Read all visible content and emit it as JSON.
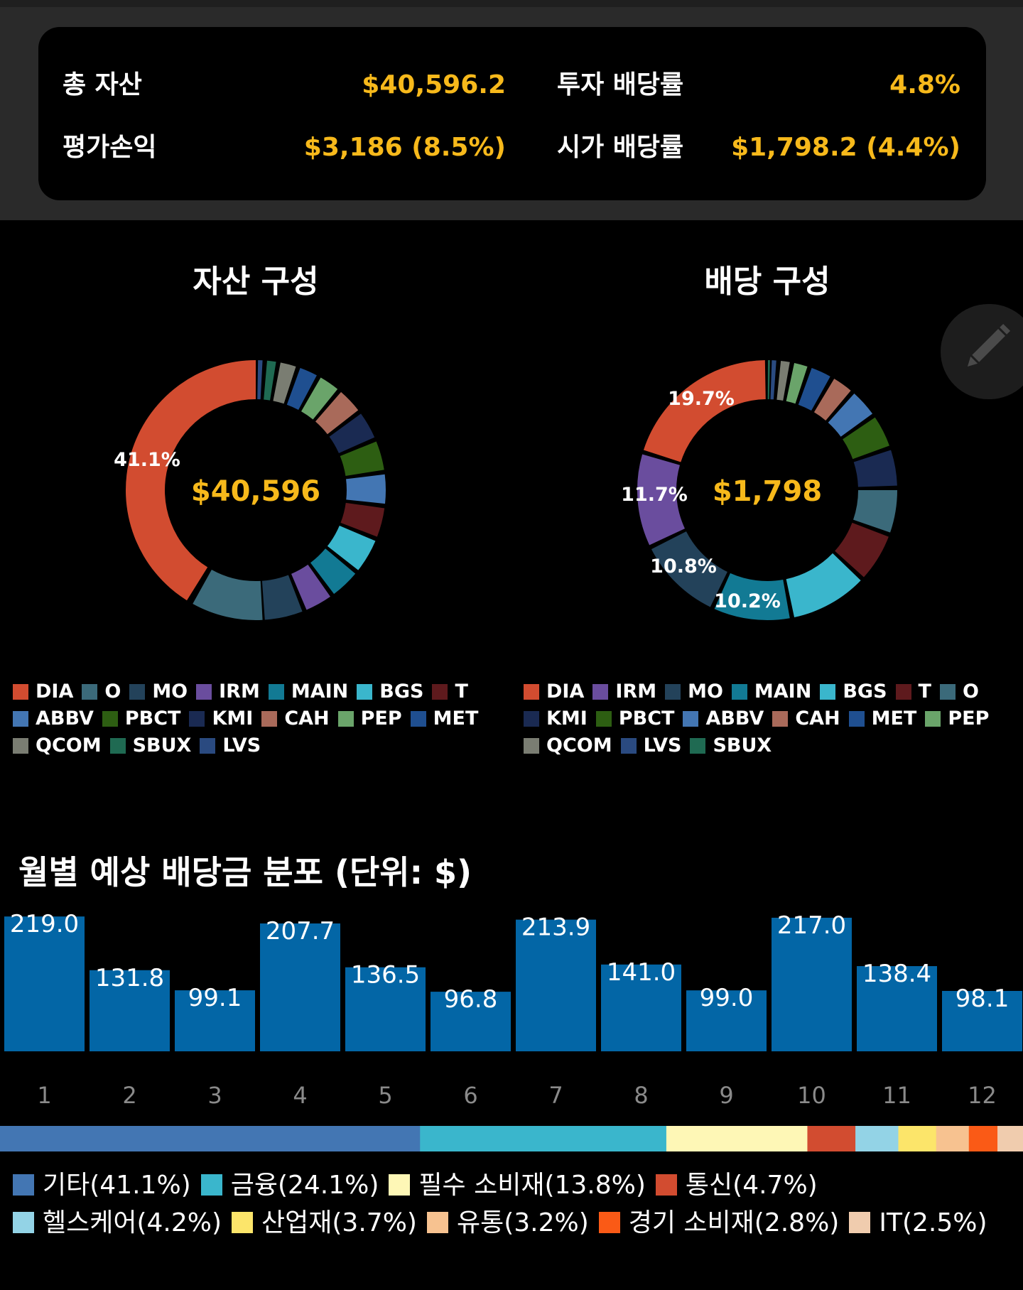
{
  "summary": {
    "total_assets_label": "총 자산",
    "total_assets_value": "$40,596.2",
    "invest_yield_label": "투자 배당률",
    "invest_yield_value": "4.8%",
    "pnl_label": "평가손익",
    "pnl_value": "$3,186 (8.5%)",
    "market_yield_label": "시가 배당률",
    "market_yield_value": "$1,798.2 (4.4%)"
  },
  "asset_chart": {
    "title": "자산 구성",
    "center_value": "$40,596",
    "slice_label": "41.1%",
    "legend": [
      {
        "label": "DIA",
        "color": "#d24c30"
      },
      {
        "label": "O",
        "color": "#3b6a7a"
      },
      {
        "label": "MO",
        "color": "#23425a"
      },
      {
        "label": "IRM",
        "color": "#6a4d9e"
      },
      {
        "label": "MAIN",
        "color": "#127a94"
      },
      {
        "label": "BGS",
        "color": "#3ab6cc"
      },
      {
        "label": "T",
        "color": "#5e1a1d"
      },
      {
        "label": "ABBV",
        "color": "#4376b3"
      },
      {
        "label": "PBCT",
        "color": "#2d5e12"
      },
      {
        "label": "KMI",
        "color": "#1a2a52"
      },
      {
        "label": "CAH",
        "color": "#a96a5a"
      },
      {
        "label": "PEP",
        "color": "#6aa46a"
      },
      {
        "label": "MET",
        "color": "#1f4f90"
      },
      {
        "label": "QCOM",
        "color": "#7a7d72"
      },
      {
        "label": "SBUX",
        "color": "#1f6a52"
      },
      {
        "label": "LVS",
        "color": "#2a4a80"
      }
    ]
  },
  "dividend_chart": {
    "title": "배당 구성",
    "center_value": "$1,798",
    "slice_labels": [
      "19.7%",
      "11.7%",
      "10.8%",
      "10.2%"
    ],
    "legend": [
      {
        "label": "DIA",
        "color": "#d24c30"
      },
      {
        "label": "IRM",
        "color": "#6a4d9e"
      },
      {
        "label": "MO",
        "color": "#23425a"
      },
      {
        "label": "MAIN",
        "color": "#127a94"
      },
      {
        "label": "BGS",
        "color": "#3ab6cc"
      },
      {
        "label": "T",
        "color": "#5e1a1d"
      },
      {
        "label": "O",
        "color": "#3b6a7a"
      },
      {
        "label": "KMI",
        "color": "#1a2a52"
      },
      {
        "label": "PBCT",
        "color": "#2d5e12"
      },
      {
        "label": "ABBV",
        "color": "#4376b3"
      },
      {
        "label": "CAH",
        "color": "#a96a5a"
      },
      {
        "label": "MET",
        "color": "#1f4f90"
      },
      {
        "label": "PEP",
        "color": "#6aa46a"
      },
      {
        "label": "QCOM",
        "color": "#7a7d72"
      },
      {
        "label": "LVS",
        "color": "#2a4a80"
      },
      {
        "label": "SBUX",
        "color": "#1f6a52"
      }
    ]
  },
  "monthly": {
    "title": "월별 예상 배당금 분포 (단위: $)",
    "months": [
      "1",
      "2",
      "3",
      "4",
      "5",
      "6",
      "7",
      "8",
      "9",
      "10",
      "11",
      "12"
    ],
    "values": [
      219.0,
      131.8,
      99.1,
      207.7,
      136.5,
      96.8,
      213.9,
      141.0,
      99.0,
      217.0,
      138.4,
      98.1
    ],
    "value_labels": [
      "219.0",
      "131.8",
      "99.1",
      "207.7",
      "136.5",
      "96.8",
      "213.9",
      "141.0",
      "99.0",
      "217.0",
      "138.4",
      "98.1"
    ],
    "bar_color": "#0366a6"
  },
  "sectors": {
    "items": [
      {
        "label": "기타(41.1%)",
        "pct": 41.1,
        "color": "#4376b3"
      },
      {
        "label": "금융(24.1%)",
        "pct": 24.1,
        "color": "#3ab6cc"
      },
      {
        "label": "필수 소비재(13.8%)",
        "pct": 13.8,
        "color": "#fef7b6"
      },
      {
        "label": "통신(4.7%)",
        "pct": 4.7,
        "color": "#d24c30"
      },
      {
        "label": "헬스케어(4.2%)",
        "pct": 4.2,
        "color": "#93d3e6"
      },
      {
        "label": "산업재(3.7%)",
        "pct": 3.7,
        "color": "#fce56a"
      },
      {
        "label": "유통(3.2%)",
        "pct": 3.2,
        "color": "#f7c290"
      },
      {
        "label": "경기 소비재(2.8%)",
        "pct": 2.8,
        "color": "#fa5a16"
      },
      {
        "label": "IT(2.5%)",
        "pct": 2.5,
        "color": "#f0ccae"
      }
    ]
  }
}
